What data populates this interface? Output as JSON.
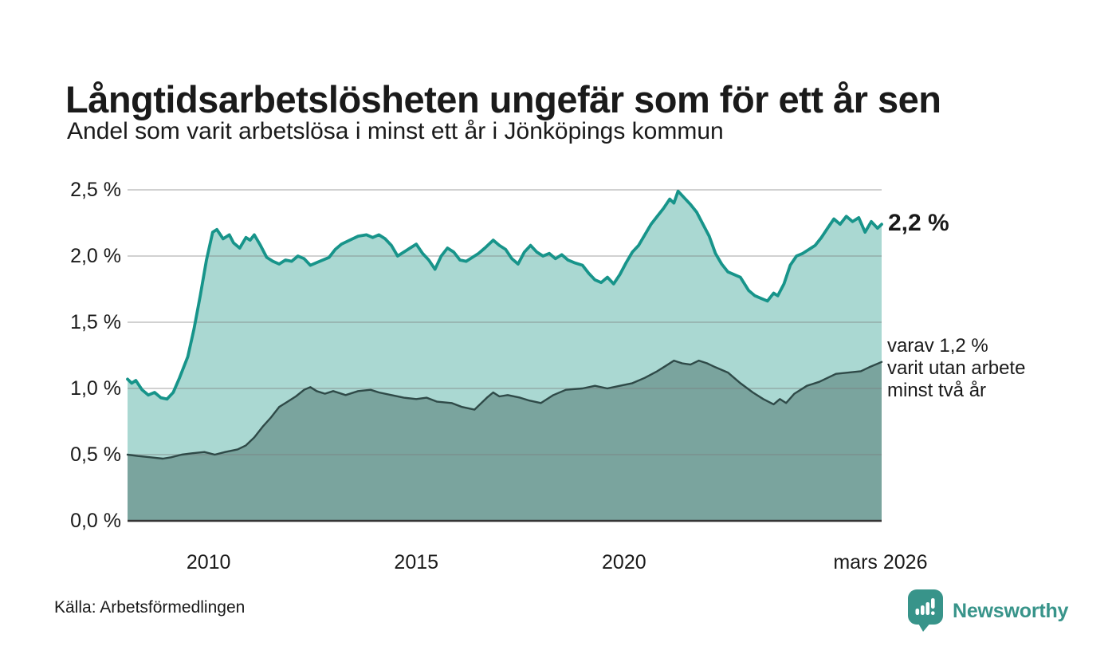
{
  "chart_data": {
    "type": "area",
    "title": "Långtidsarbetslösheten ungefär som för ett år sen",
    "subtitle": "Andel som varit arbetslösa i minst ett år i Jönköpings kommun",
    "xlabel": "",
    "ylabel": "",
    "x_range": [
      2008.05,
      2026.2
    ],
    "ylim": [
      0,
      2.5
    ],
    "grid": true,
    "grid_color": "#7a7a7a",
    "baseline_color": "#363636",
    "y_ticks": [
      {
        "label": "2,5 %",
        "value": 2.5
      },
      {
        "label": "2,0 %",
        "value": 2.0
      },
      {
        "label": "1,5 %",
        "value": 1.5
      },
      {
        "label": "1,0 %",
        "value": 1.0
      },
      {
        "label": "0,5 %",
        "value": 0.5
      },
      {
        "label": "0,0 %",
        "value": 0.0
      }
    ],
    "x_ticks": [
      {
        "label": "2010",
        "value": 2010
      },
      {
        "label": "2015",
        "value": 2015
      },
      {
        "label": "2020",
        "value": 2020
      },
      {
        "label": "mars 2026",
        "value": 2026.17
      }
    ],
    "series": [
      {
        "name": "Andel arbetslösa minst ett år",
        "line_color": "#17948a",
        "fill_color": "#aad8d2",
        "line_width": 3.8,
        "end_label": "2,2 %",
        "end_value": 2.2,
        "points": [
          [
            2008.05,
            1.07
          ],
          [
            2008.15,
            1.04
          ],
          [
            2008.25,
            1.06
          ],
          [
            2008.4,
            0.99
          ],
          [
            2008.55,
            0.95
          ],
          [
            2008.7,
            0.97
          ],
          [
            2008.85,
            0.93
          ],
          [
            2009.0,
            0.92
          ],
          [
            2009.15,
            0.97
          ],
          [
            2009.3,
            1.08
          ],
          [
            2009.5,
            1.24
          ],
          [
            2009.65,
            1.45
          ],
          [
            2009.8,
            1.7
          ],
          [
            2009.95,
            1.97
          ],
          [
            2010.1,
            2.18
          ],
          [
            2010.2,
            2.2
          ],
          [
            2010.35,
            2.13
          ],
          [
            2010.5,
            2.16
          ],
          [
            2010.6,
            2.1
          ],
          [
            2010.75,
            2.06
          ],
          [
            2010.9,
            2.14
          ],
          [
            2011.0,
            2.12
          ],
          [
            2011.1,
            2.16
          ],
          [
            2011.25,
            2.08
          ],
          [
            2011.4,
            1.99
          ],
          [
            2011.55,
            1.96
          ],
          [
            2011.7,
            1.94
          ],
          [
            2011.85,
            1.97
          ],
          [
            2012.0,
            1.96
          ],
          [
            2012.15,
            2.0
          ],
          [
            2012.3,
            1.98
          ],
          [
            2012.45,
            1.93
          ],
          [
            2012.6,
            1.95
          ],
          [
            2012.75,
            1.97
          ],
          [
            2012.9,
            1.99
          ],
          [
            2013.05,
            2.05
          ],
          [
            2013.2,
            2.09
          ],
          [
            2013.4,
            2.12
          ],
          [
            2013.6,
            2.15
          ],
          [
            2013.8,
            2.16
          ],
          [
            2013.95,
            2.14
          ],
          [
            2014.1,
            2.16
          ],
          [
            2014.25,
            2.13
          ],
          [
            2014.4,
            2.08
          ],
          [
            2014.55,
            2.0
          ],
          [
            2014.7,
            2.03
          ],
          [
            2014.85,
            2.06
          ],
          [
            2015.0,
            2.09
          ],
          [
            2015.15,
            2.02
          ],
          [
            2015.3,
            1.97
          ],
          [
            2015.45,
            1.9
          ],
          [
            2015.6,
            2.0
          ],
          [
            2015.75,
            2.06
          ],
          [
            2015.9,
            2.03
          ],
          [
            2016.05,
            1.97
          ],
          [
            2016.2,
            1.96
          ],
          [
            2016.35,
            1.99
          ],
          [
            2016.5,
            2.02
          ],
          [
            2016.65,
            2.06
          ],
          [
            2016.85,
            2.12
          ],
          [
            2017.0,
            2.08
          ],
          [
            2017.15,
            2.05
          ],
          [
            2017.3,
            1.98
          ],
          [
            2017.45,
            1.94
          ],
          [
            2017.6,
            2.03
          ],
          [
            2017.75,
            2.08
          ],
          [
            2017.9,
            2.03
          ],
          [
            2018.05,
            2.0
          ],
          [
            2018.2,
            2.02
          ],
          [
            2018.35,
            1.98
          ],
          [
            2018.5,
            2.01
          ],
          [
            2018.65,
            1.97
          ],
          [
            2018.8,
            1.95
          ],
          [
            2019.0,
            1.93
          ],
          [
            2019.15,
            1.87
          ],
          [
            2019.3,
            1.82
          ],
          [
            2019.45,
            1.8
          ],
          [
            2019.6,
            1.84
          ],
          [
            2019.75,
            1.79
          ],
          [
            2019.9,
            1.86
          ],
          [
            2020.05,
            1.95
          ],
          [
            2020.2,
            2.03
          ],
          [
            2020.35,
            2.08
          ],
          [
            2020.5,
            2.16
          ],
          [
            2020.65,
            2.24
          ],
          [
            2020.8,
            2.3
          ],
          [
            2020.95,
            2.36
          ],
          [
            2021.1,
            2.43
          ],
          [
            2021.2,
            2.4
          ],
          [
            2021.3,
            2.49
          ],
          [
            2021.45,
            2.44
          ],
          [
            2021.6,
            2.39
          ],
          [
            2021.75,
            2.33
          ],
          [
            2021.9,
            2.24
          ],
          [
            2022.05,
            2.15
          ],
          [
            2022.2,
            2.02
          ],
          [
            2022.35,
            1.94
          ],
          [
            2022.5,
            1.88
          ],
          [
            2022.65,
            1.86
          ],
          [
            2022.8,
            1.84
          ],
          [
            2023.0,
            1.74
          ],
          [
            2023.15,
            1.7
          ],
          [
            2023.3,
            1.68
          ],
          [
            2023.45,
            1.66
          ],
          [
            2023.6,
            1.72
          ],
          [
            2023.7,
            1.7
          ],
          [
            2023.85,
            1.79
          ],
          [
            2024.0,
            1.93
          ],
          [
            2024.15,
            2.0
          ],
          [
            2024.3,
            2.02
          ],
          [
            2024.45,
            2.05
          ],
          [
            2024.6,
            2.08
          ],
          [
            2024.75,
            2.14
          ],
          [
            2024.9,
            2.21
          ],
          [
            2025.05,
            2.28
          ],
          [
            2025.2,
            2.24
          ],
          [
            2025.35,
            2.3
          ],
          [
            2025.5,
            2.26
          ],
          [
            2025.65,
            2.29
          ],
          [
            2025.8,
            2.18
          ],
          [
            2025.95,
            2.26
          ],
          [
            2026.1,
            2.21
          ],
          [
            2026.2,
            2.24
          ]
        ]
      },
      {
        "name": "Varav utan arbete minst två år",
        "line_color": "#2f4a48",
        "fill_color": "#7aa49e",
        "line_width": 2.4,
        "end_label_lines": [
          "varav 1,2 %",
          "varit utan arbete",
          "minst två år"
        ],
        "end_value": 1.2,
        "points": [
          [
            2008.05,
            0.5
          ],
          [
            2008.3,
            0.49
          ],
          [
            2008.6,
            0.48
          ],
          [
            2008.9,
            0.47
          ],
          [
            2009.1,
            0.48
          ],
          [
            2009.35,
            0.5
          ],
          [
            2009.6,
            0.51
          ],
          [
            2009.9,
            0.52
          ],
          [
            2010.15,
            0.5
          ],
          [
            2010.4,
            0.52
          ],
          [
            2010.7,
            0.54
          ],
          [
            2010.9,
            0.57
          ],
          [
            2011.1,
            0.63
          ],
          [
            2011.3,
            0.71
          ],
          [
            2011.5,
            0.78
          ],
          [
            2011.7,
            0.86
          ],
          [
            2011.9,
            0.9
          ],
          [
            2012.1,
            0.94
          ],
          [
            2012.3,
            0.99
          ],
          [
            2012.45,
            1.01
          ],
          [
            2012.6,
            0.98
          ],
          [
            2012.8,
            0.96
          ],
          [
            2013.0,
            0.98
          ],
          [
            2013.3,
            0.95
          ],
          [
            2013.6,
            0.98
          ],
          [
            2013.9,
            0.99
          ],
          [
            2014.1,
            0.97
          ],
          [
            2014.4,
            0.95
          ],
          [
            2014.7,
            0.93
          ],
          [
            2015.0,
            0.92
          ],
          [
            2015.25,
            0.93
          ],
          [
            2015.5,
            0.9
          ],
          [
            2015.85,
            0.89
          ],
          [
            2016.1,
            0.86
          ],
          [
            2016.4,
            0.84
          ],
          [
            2016.7,
            0.93
          ],
          [
            2016.85,
            0.97
          ],
          [
            2017.0,
            0.94
          ],
          [
            2017.2,
            0.95
          ],
          [
            2017.5,
            0.93
          ],
          [
            2017.7,
            0.91
          ],
          [
            2018.0,
            0.89
          ],
          [
            2018.3,
            0.95
          ],
          [
            2018.6,
            0.99
          ],
          [
            2019.0,
            1.0
          ],
          [
            2019.3,
            1.02
          ],
          [
            2019.6,
            1.0
          ],
          [
            2019.9,
            1.02
          ],
          [
            2020.2,
            1.04
          ],
          [
            2020.5,
            1.08
          ],
          [
            2020.8,
            1.13
          ],
          [
            2021.0,
            1.17
          ],
          [
            2021.2,
            1.21
          ],
          [
            2021.4,
            1.19
          ],
          [
            2021.6,
            1.18
          ],
          [
            2021.8,
            1.21
          ],
          [
            2022.0,
            1.19
          ],
          [
            2022.2,
            1.16
          ],
          [
            2022.5,
            1.12
          ],
          [
            2022.8,
            1.04
          ],
          [
            2023.1,
            0.97
          ],
          [
            2023.35,
            0.92
          ],
          [
            2023.6,
            0.88
          ],
          [
            2023.75,
            0.92
          ],
          [
            2023.9,
            0.89
          ],
          [
            2024.1,
            0.96
          ],
          [
            2024.4,
            1.02
          ],
          [
            2024.7,
            1.05
          ],
          [
            2025.1,
            1.11
          ],
          [
            2025.4,
            1.12
          ],
          [
            2025.7,
            1.13
          ],
          [
            2025.9,
            1.16
          ],
          [
            2026.2,
            1.2
          ]
        ]
      }
    ]
  },
  "footer": {
    "source": "Källa: Arbetsförmedlingen",
    "brand": "Newsworthy",
    "brand_icon": "bar-chart-speech-bubble-icon",
    "brand_color": "#38948a"
  }
}
